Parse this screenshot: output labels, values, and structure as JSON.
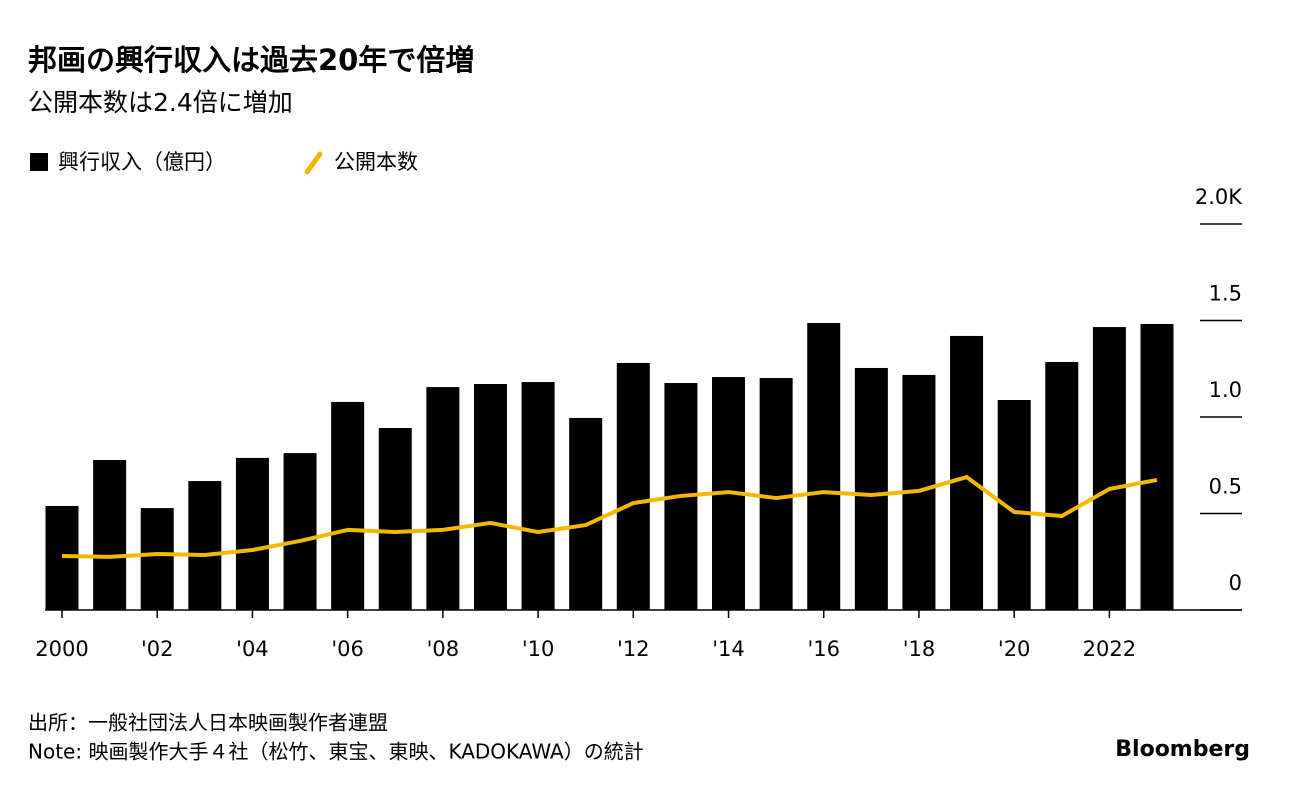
{
  "chart_data": {
    "type": "bar",
    "title": "邦画の興行収入は過去20年で倍増",
    "subtitle": "公開本数は2.4倍に増加",
    "categories": [
      "2000",
      null,
      "'02",
      null,
      "'04",
      null,
      "'06",
      null,
      "'08",
      null,
      "'10",
      null,
      "'12",
      null,
      "'14",
      null,
      "'16",
      null,
      "'18",
      null,
      "'20",
      null,
      "2022",
      null
    ],
    "series": [
      {
        "name": "興行収入（億円）",
        "color": "#000000",
        "values": [
          0.539,
          0.777,
          0.528,
          0.668,
          0.788,
          0.813,
          1.078,
          0.943,
          1.155,
          1.171,
          1.181,
          0.995,
          1.28,
          1.176,
          1.207,
          1.202,
          1.487,
          1.254,
          1.218,
          1.42,
          1.088,
          1.285,
          1.466,
          1.482
        ]
      },
      {
        "name": "公開本数",
        "color": "#f5b800",
        "type": "line",
        "values": [
          0.28,
          0.275,
          0.29,
          0.285,
          0.311,
          0.358,
          0.415,
          0.404,
          0.415,
          0.451,
          0.404,
          0.44,
          0.554,
          0.591,
          0.611,
          0.58,
          0.611,
          0.596,
          0.617,
          0.689,
          0.508,
          0.487,
          0.627,
          0.674
        ]
      }
    ],
    "ylim": [
      0,
      2
    ],
    "yticks": [
      0,
      0.5,
      {
        "value": 1,
        "label": "1.0"
      },
      1.5,
      {
        "value": 2,
        "label": "2.0K"
      }
    ],
    "source": "出所：一般社団法人日本映画製作者連盟",
    "note": "Note: 映画製作大手４社（松竹、東宝、東映、KADOKAWA）の統計",
    "brand": "Bloomberg"
  }
}
